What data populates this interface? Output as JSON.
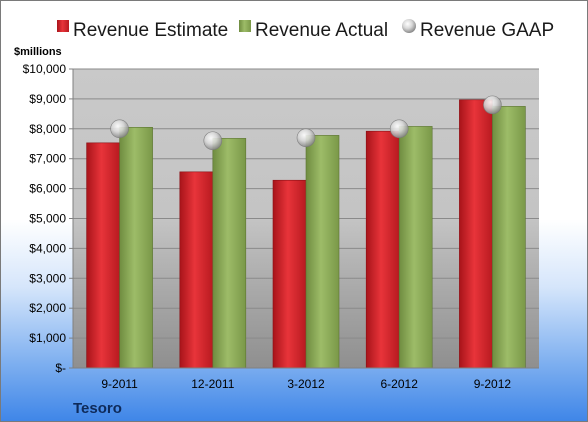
{
  "chart_data": {
    "type": "bar",
    "unit_label": "$millions",
    "company": "Tesoro",
    "categories": [
      "9-2011",
      "12-2011",
      "3-2012",
      "6-2012",
      "9-2012"
    ],
    "series": [
      {
        "name": "Revenue Estimate",
        "type": "bar",
        "color": "#d7242b",
        "values": [
          7530,
          6560,
          6280,
          7920,
          8970
        ]
      },
      {
        "name": "Revenue Actual",
        "type": "bar",
        "color": "#8cab5a",
        "values": [
          8050,
          7680,
          7780,
          8080,
          8750
        ]
      },
      {
        "name": "Revenue GAAP",
        "type": "marker",
        "color": "#c9c9c9",
        "values": [
          8000,
          7600,
          7700,
          8000,
          8800
        ]
      }
    ],
    "y_ticks": [
      "$-",
      "$1,000",
      "$2,000",
      "$3,000",
      "$4,000",
      "$5,000",
      "$6,000",
      "$7,000",
      "$8,000",
      "$9,000",
      "$10,000"
    ],
    "ylim": [
      0,
      10000
    ],
    "grid": true,
    "legend_position": "top"
  }
}
